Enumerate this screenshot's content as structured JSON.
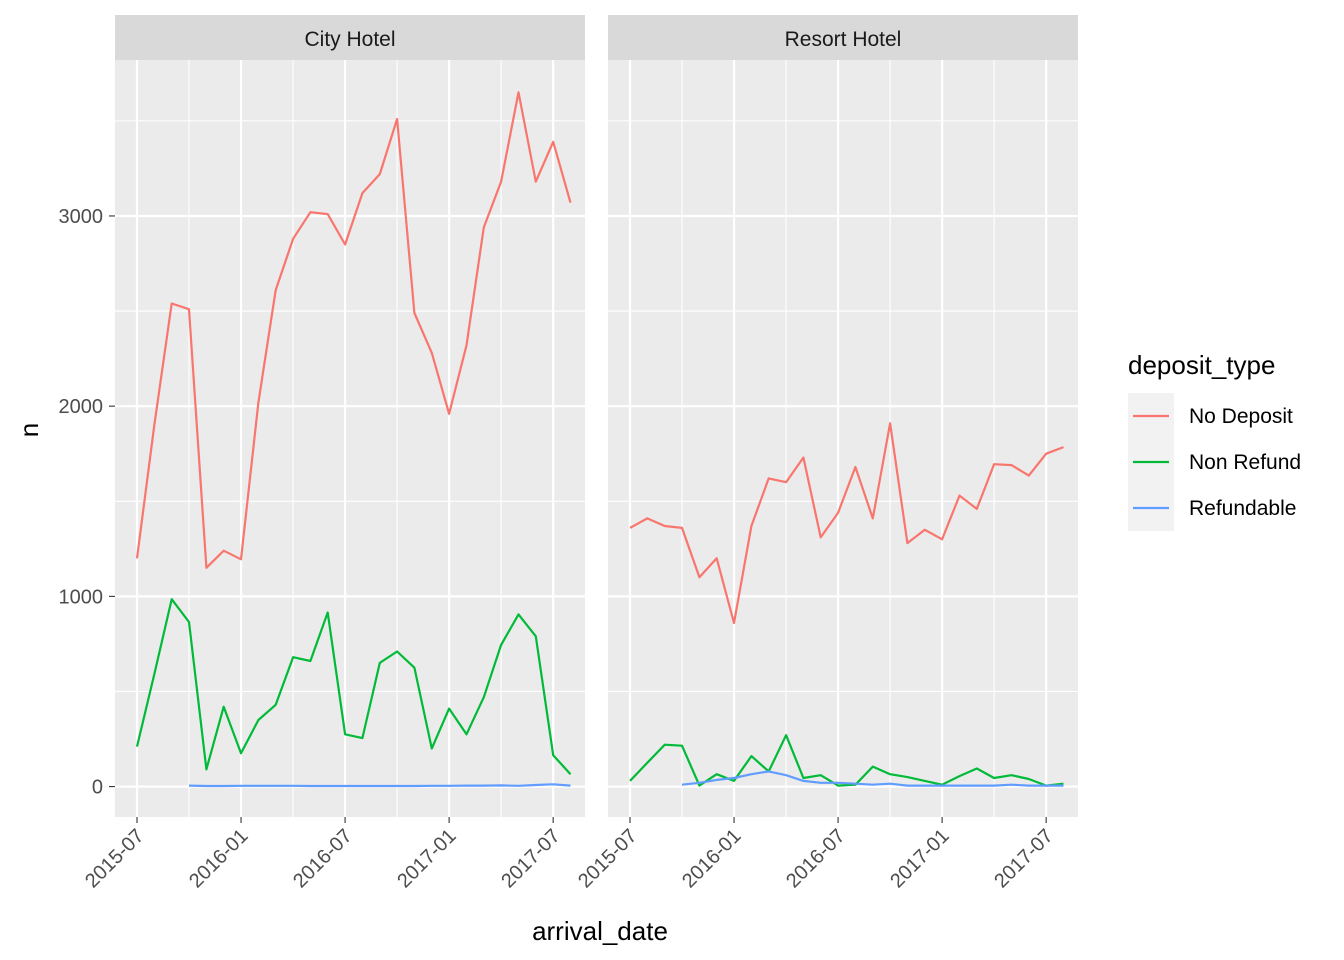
{
  "chart_data": {
    "type": "line",
    "facets": [
      "City Hotel",
      "Resort Hotel"
    ],
    "xlabel": "arrival_date",
    "ylabel": "n",
    "x": [
      "2015-07",
      "2015-08",
      "2015-09",
      "2015-10",
      "2015-11",
      "2015-12",
      "2016-01",
      "2016-02",
      "2016-03",
      "2016-04",
      "2016-05",
      "2016-06",
      "2016-07",
      "2016-08",
      "2016-09",
      "2016-10",
      "2016-11",
      "2016-12",
      "2017-01",
      "2017-02",
      "2017-03",
      "2017-04",
      "2017-05",
      "2017-06",
      "2017-07",
      "2017-08"
    ],
    "x_ticks": [
      "2015-07",
      "2016-01",
      "2016-07",
      "2017-01",
      "2017-07"
    ],
    "y_ticks": [
      0,
      1000,
      2000,
      3000
    ],
    "ylim": [
      -160,
      3820
    ],
    "legend": {
      "title": "deposit_type",
      "position": "right",
      "entries": [
        "No Deposit",
        "Non Refund",
        "Refundable"
      ]
    },
    "colors": {
      "No Deposit": "#F8766D",
      "Non Refund": "#00BA38",
      "Refundable": "#619CFF",
      "panel_background": "#EBEBEB",
      "strip_background": "#D9D9D9",
      "grid": "#FFFFFF"
    },
    "grid": true,
    "panels": [
      {
        "facet": "City Hotel",
        "series": [
          {
            "name": "No Deposit",
            "values": [
              1200,
              1900,
              2540,
              2510,
              1150,
              1240,
              1195,
              2020,
              2610,
              2880,
              3020,
              3010,
              2850,
              3120,
              3220,
              3510,
              2490,
              2280,
              1960,
              2320,
              2940,
              3180,
              3650,
              3180,
              3390,
              3070
            ]
          },
          {
            "name": "Non Refund",
            "values": [
              210,
              590,
              985,
              865,
              90,
              420,
              175,
              350,
              430,
              680,
              660,
              915,
              275,
              255,
              650,
              710,
              625,
              200,
              410,
              275,
              470,
              745,
              905,
              790,
              165,
              65
            ]
          },
          {
            "name": "Refundable",
            "values": [
              null,
              null,
              null,
              5,
              3,
              3,
              4,
              4,
              4,
              4,
              3,
              3,
              3,
              3,
              3,
              3,
              3,
              4,
              4,
              5,
              5,
              6,
              4,
              8,
              12,
              5
            ]
          }
        ]
      },
      {
        "facet": "Resort Hotel",
        "series": [
          {
            "name": "No Deposit",
            "values": [
              1360,
              1410,
              1370,
              1360,
              1100,
              1200,
              860,
              1370,
              1620,
              1600,
              1730,
              1310,
              1440,
              1680,
              1410,
              1910,
              1280,
              1350,
              1300,
              1530,
              1460,
              1695,
              1690,
              1635,
              1750,
              1785
            ]
          },
          {
            "name": "Non Refund",
            "values": [
              30,
              125,
              220,
              215,
              5,
              65,
              30,
              160,
              80,
              270,
              45,
              60,
              5,
              10,
              105,
              65,
              50,
              30,
              10,
              55,
              95,
              45,
              60,
              40,
              5,
              15
            ]
          },
          {
            "name": "Refundable",
            "values": [
              null,
              null,
              null,
              10,
              20,
              35,
              45,
              65,
              80,
              60,
              30,
              20,
              20,
              15,
              10,
              15,
              5,
              5,
              5,
              5,
              5,
              5,
              10,
              5,
              5,
              5
            ]
          }
        ]
      }
    ]
  }
}
